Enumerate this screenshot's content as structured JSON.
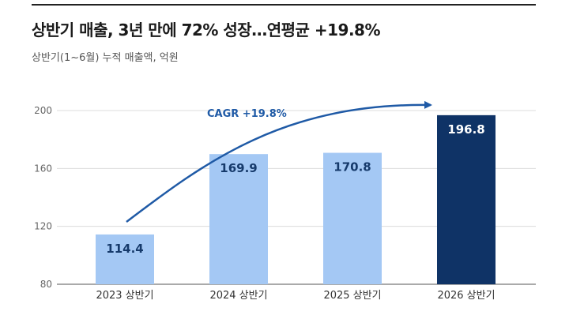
{
  "title": "상반기 매출, 3년 만에 72% 성장…연평균 +19.8%",
  "subtitle": "상반기(1~6월) 누적 매출액, 억원",
  "colors": {
    "bar_light": "#a4c8f4",
    "bar_dark": "#0f3366",
    "label_dark": "#163a6b",
    "label_light": "#ffffff",
    "arrow": "#1f5aa6",
    "grid": "#dcdcdc",
    "axis": "#555555"
  },
  "chart_data": {
    "type": "bar",
    "categories": [
      "2023 상반기",
      "2024 상반기",
      "2025 상반기",
      "2026 상반기"
    ],
    "values": [
      114.4,
      169.9,
      170.8,
      196.8
    ],
    "value_labels": [
      "114.4",
      "169.9",
      "170.8",
      "196.8"
    ],
    "highlight_index": 3,
    "ylim": [
      80,
      200
    ],
    "yticks": [
      80,
      120,
      160,
      200
    ],
    "grid": true,
    "xlabel": "",
    "ylabel": "",
    "annotation": {
      "text": "CAGR +19.8%",
      "type": "arrow",
      "from_category": 0,
      "to_category": 3
    }
  }
}
